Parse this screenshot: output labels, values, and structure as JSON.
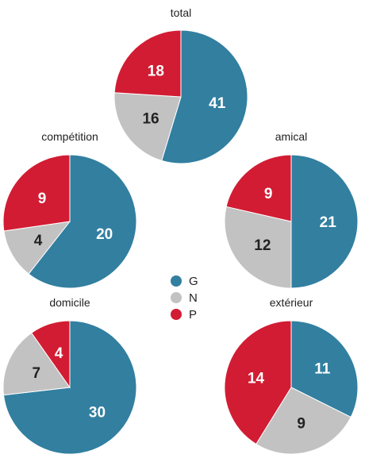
{
  "chart_data": {
    "type": "pie",
    "categories": [
      "G",
      "N",
      "P"
    ],
    "colors": {
      "G": "#327fa0",
      "N": "#c2c2c2",
      "P": "#d21c33"
    },
    "label_colors": {
      "G": "#ffffff",
      "N": "#222222",
      "P": "#ffffff"
    },
    "legend": {
      "placement": "center",
      "entries": [
        "G",
        "N",
        "P"
      ]
    },
    "pies": [
      {
        "title": "total",
        "values": {
          "G": 41,
          "N": 16,
          "P": 18
        }
      },
      {
        "title": "compétition",
        "values": {
          "G": 20,
          "N": 4,
          "P": 9
        }
      },
      {
        "title": "amical",
        "values": {
          "G": 21,
          "N": 12,
          "P": 9
        }
      },
      {
        "title": "domicile",
        "values": {
          "G": 30,
          "N": 7,
          "P": 4
        }
      },
      {
        "title": "extérieur",
        "values": {
          "G": 11,
          "N": 9,
          "P": 14
        }
      }
    ]
  }
}
